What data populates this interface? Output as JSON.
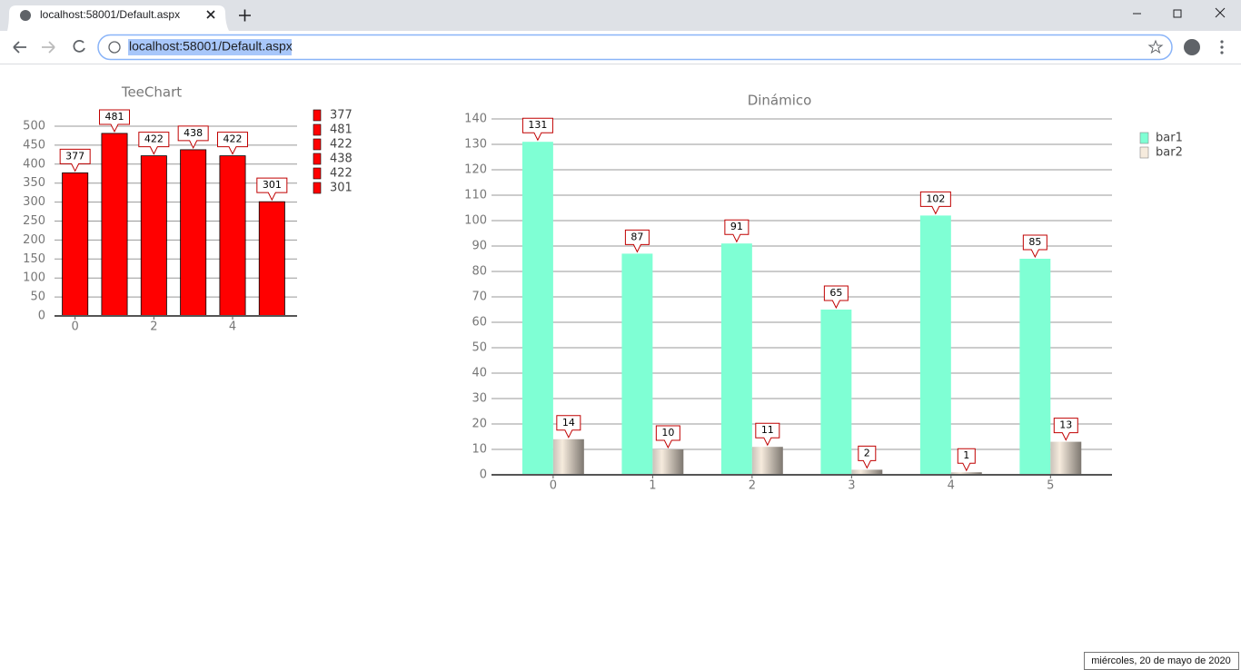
{
  "browser": {
    "tab_title": "localhost:58001/Default.aspx",
    "url": "localhost:58001/Default.aspx"
  },
  "chart_data": [
    {
      "type": "bar",
      "title": "TeeChart",
      "x": [
        0,
        1,
        2,
        3,
        4,
        5
      ],
      "values": [
        377,
        481,
        422,
        438,
        422,
        301
      ],
      "color": "#ff0000",
      "xlim": [
        -0.5,
        5.5
      ],
      "xticks": [
        0,
        2,
        4
      ],
      "ylim": [
        0,
        500
      ],
      "yticks": [
        0,
        50,
        100,
        150,
        200,
        250,
        300,
        350,
        400,
        450,
        500
      ],
      "grid": true,
      "legend": "right"
    },
    {
      "type": "bar",
      "title": "Dinámico",
      "x": [
        0,
        1,
        2,
        3,
        4,
        5
      ],
      "series": [
        {
          "name": "bar1",
          "color": "#7fffd4",
          "values": [
            131,
            87,
            91,
            65,
            102,
            85
          ]
        },
        {
          "name": "bar2",
          "color": "#f6ebdd",
          "values": [
            14,
            10,
            11,
            2,
            1,
            13
          ]
        }
      ],
      "xlim": [
        -0.62,
        5.6
      ],
      "xticks": [
        0,
        1,
        2,
        3,
        4,
        5
      ],
      "ylim": [
        0,
        140
      ],
      "yticks": [
        0,
        10,
        20,
        30,
        40,
        50,
        60,
        70,
        80,
        90,
        100,
        110,
        120,
        130,
        140
      ],
      "grid": true,
      "legend": "right"
    }
  ],
  "footer": {
    "date": "miércoles, 20 de mayo de 2020"
  }
}
